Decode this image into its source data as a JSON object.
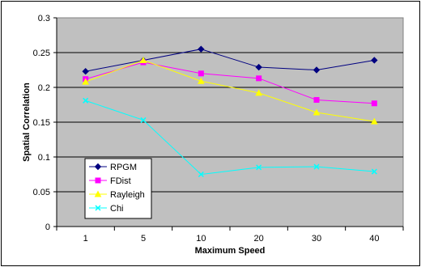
{
  "chart_data": {
    "type": "line",
    "categories": [
      "1",
      "5",
      "10",
      "20",
      "30",
      "40"
    ],
    "xlabel": "Maximum Speed",
    "ylabel": "Spatial Correlation",
    "ylim": [
      0,
      0.3
    ],
    "yticks": [
      "0",
      "0.05",
      "0.1",
      "0.15",
      "0.2",
      "0.25",
      "0.3"
    ],
    "grid": "horizontal",
    "legend_position": "bottom-left",
    "plot_background": "#c0c0c0",
    "series": [
      {
        "name": "RPGM",
        "color": "#000080",
        "marker": "diamond",
        "values": [
          0.223,
          0.239,
          0.255,
          0.229,
          0.225,
          0.239
        ]
      },
      {
        "name": "FDist",
        "color": "#ff00ff",
        "marker": "square",
        "values": [
          0.212,
          0.236,
          0.22,
          0.213,
          0.182,
          0.177
        ]
      },
      {
        "name": "Rayleigh",
        "color": "#ffff00",
        "marker": "triangle",
        "values": [
          0.208,
          0.239,
          0.209,
          0.192,
          0.164,
          0.151
        ]
      },
      {
        "name": "Chi",
        "color": "#00ffff",
        "marker": "x",
        "values": [
          0.181,
          0.153,
          0.075,
          0.085,
          0.086,
          0.079
        ]
      }
    ]
  }
}
